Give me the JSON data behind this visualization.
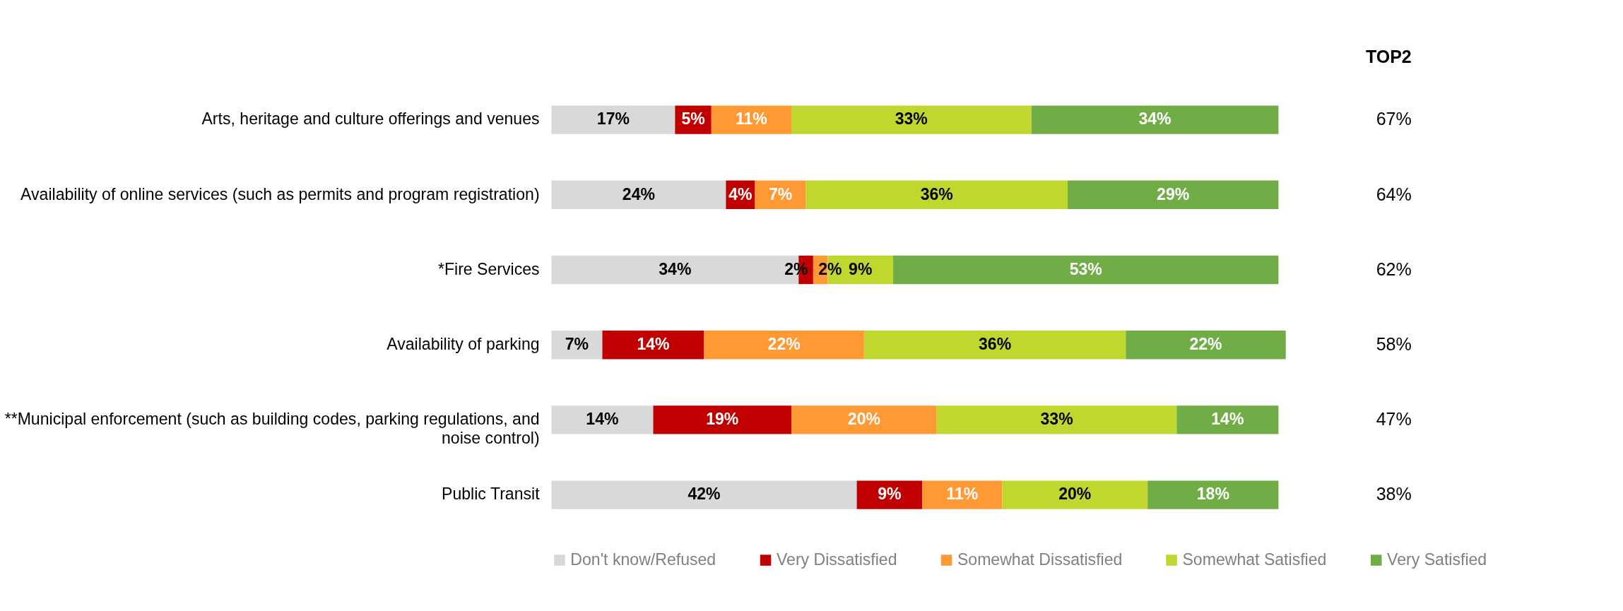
{
  "chart_data": {
    "type": "bar",
    "orientation": "horizontal",
    "stacked": true,
    "categories": [
      "Arts, heritage and culture offerings and venues",
      "Availability of online services (such as permits and program registration)",
      "*Fire Services",
      "Availability of parking",
      "**Municipal enforcement (such as building codes, parking regulations, and noise control)",
      "Public Transit"
    ],
    "series": [
      {
        "name": "Don't know/Refused",
        "color": "#d9d9d9",
        "values": [
          17,
          24,
          34,
          7,
          14,
          42
        ],
        "value_labels": [
          "17%",
          "24%",
          "34%",
          "7%",
          "14%",
          "42%"
        ]
      },
      {
        "name": "Very Dissatisfied",
        "color": "#c00000",
        "values": [
          5,
          4,
          2,
          14,
          19,
          9
        ],
        "value_labels": [
          "5%",
          "4%",
          "2%",
          "14%",
          "19%",
          "9%"
        ]
      },
      {
        "name": "Somewhat Dissatisfied",
        "color": "#ff9933",
        "values": [
          11,
          7,
          2,
          22,
          20,
          11
        ],
        "value_labels": [
          "11%",
          "7%",
          "2%",
          "22%",
          "20%",
          "11%"
        ]
      },
      {
        "name": "Somewhat Satisfied",
        "color": "#c0d72f",
        "values": [
          33,
          36,
          9,
          36,
          33,
          20
        ],
        "value_labels": [
          "33%",
          "36%",
          "9%",
          "36%",
          "33%",
          "20%"
        ]
      },
      {
        "name": "Very Satisfied",
        "color": "#70ad47",
        "values": [
          34,
          29,
          53,
          22,
          14,
          18
        ],
        "value_labels": [
          "34%",
          "29%",
          "53%",
          "22%",
          "14%",
          "18%"
        ]
      }
    ],
    "xlim": [
      0,
      101
    ],
    "tick_labels": "y",
    "legend": "bottom",
    "annotations": [
      "TOP2",
      "67%",
      "64%",
      "62%",
      "58%",
      "47%",
      "38%"
    ]
  }
}
